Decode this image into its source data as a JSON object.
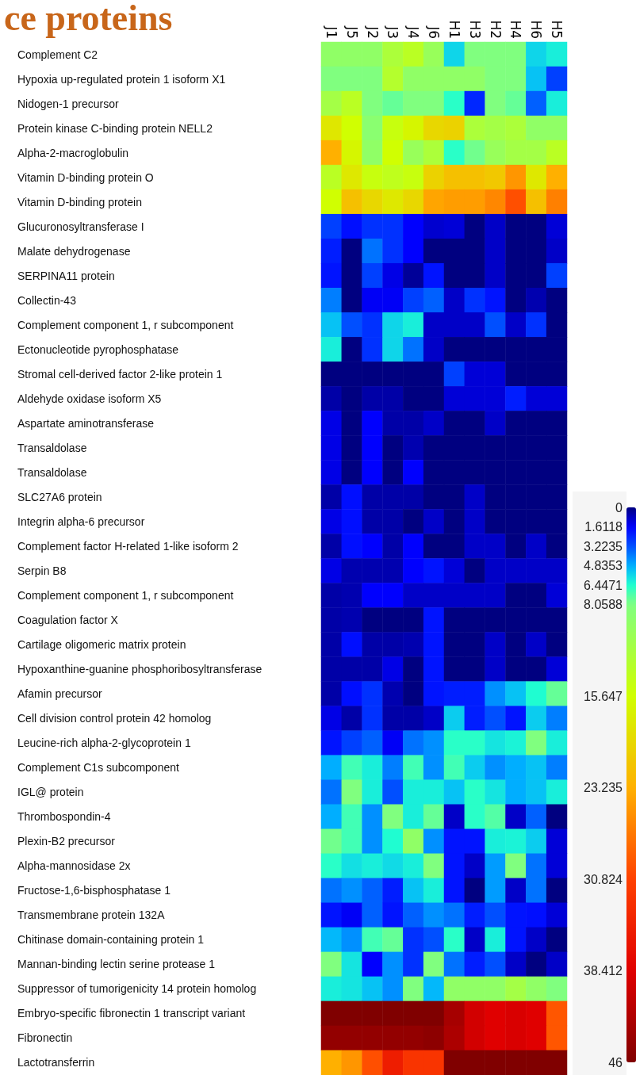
{
  "chart_data": {
    "type": "heatmap",
    "title": "ce proteins",
    "categories": [
      "J1",
      "J5",
      "J2",
      "J3",
      "J4",
      "J6",
      "H1",
      "H3",
      "H2",
      "H4",
      "H6",
      "H5"
    ],
    "y_categories": [
      "Complement C2",
      "Hypoxia up-regulated protein 1 isoform X1",
      "Nidogen-1 precursor",
      "Protein kinase C-binding protein NELL2",
      "Alpha-2-macroglobulin",
      "Vitamin D-binding protein O",
      "Vitamin D-binding protein",
      "Glucuronosyltransferase I",
      "Malate dehydrogenase",
      "SERPINA11 protein",
      "Collectin-43",
      "Complement component 1, r subcomponent",
      "Ectonucleotide pyrophosphatase",
      "Stromal cell-derived factor 2-like protein 1",
      "Aldehyde oxidase isoform X5",
      "Aspartate aminotransferase",
      "Transaldolase",
      "Transaldolase",
      "SLC27A6 protein",
      "Integrin alpha-6 precursor",
      "Complement factor H-related 1-like isoform 2",
      "Serpin B8",
      "Complement component 1, r subcomponent",
      "Coagulation factor X",
      "Cartilage oligomeric matrix protein",
      "Hypoxanthine-guanine phosphoribosyltransferase",
      "Afamin precursor",
      "Cell division control protein 42 homolog",
      "Leucine-rich alpha-2-glycoprotein 1",
      "Complement C1s subcomponent",
      "IGL@ protein",
      "Thrombospondin-4",
      "Plexin-B2 precursor",
      "Alpha-mannosidase 2x",
      "Fructose-1,6-bisphosphatase 1",
      "Transmembrane protein 132A",
      "Chitinase domain-containing protein 1",
      "Mannan-binding lectin serine protease 1",
      "Suppressor of tumorigenicity 14 protein homolog",
      "Embryo-specific fibronectin 1 transcript variant",
      "Fibronectin",
      "Lactotransferrin"
    ],
    "cells": [
      [
        9.6,
        9.6,
        9.6,
        12.2,
        13.6,
        10.3,
        5.6,
        8.1,
        8.1,
        8.1,
        5.6,
        6.1
      ],
      [
        8.1,
        8.1,
        8.1,
        13,
        9.6,
        9.6,
        9.6,
        9.6,
        8.1,
        8.1,
        5.2,
        2.9
      ],
      [
        11.5,
        13.6,
        8.1,
        7.6,
        8.1,
        8.1,
        6.6,
        2.4,
        8.1,
        7.6,
        3.5,
        6.1
      ],
      [
        18,
        15.6,
        9,
        14.8,
        16.5,
        19.5,
        20,
        12.2,
        11.5,
        12.2,
        9.6,
        9.6
      ],
      [
        23.2,
        16.5,
        9.6,
        15.6,
        10.3,
        12.2,
        6.6,
        7.8,
        10.3,
        11.5,
        11.5,
        13.6
      ],
      [
        13.6,
        17.9,
        14.8,
        14,
        14.8,
        20,
        21.7,
        21.7,
        20.9,
        25,
        17.9,
        23.2
      ],
      [
        15.6,
        21.7,
        19.5,
        17.9,
        19.5,
        24,
        24.5,
        24.5,
        26,
        29.8,
        21.7,
        26.5
      ],
      [
        2.9,
        1.9,
        2.6,
        2.6,
        1.6,
        1,
        1.1,
        0,
        0.9,
        0,
        0,
        1.1
      ],
      [
        2.2,
        0,
        3.8,
        2.6,
        1.6,
        0,
        0,
        0,
        0.9,
        0,
        0,
        0.9
      ],
      [
        2,
        0,
        2.9,
        1.3,
        0.3,
        2,
        0,
        0,
        0.9,
        0,
        0,
        2.9
      ],
      [
        4,
        0,
        1.5,
        1.5,
        2.9,
        3.5,
        0.9,
        2.6,
        2,
        0,
        0.6,
        0
      ],
      [
        5.2,
        3.2,
        2.6,
        5.6,
        6.1,
        0.9,
        0.9,
        0.9,
        3.2,
        0.9,
        2.6,
        0
      ],
      [
        6.1,
        0,
        2.6,
        5.6,
        3.8,
        0.9,
        0,
        0,
        0,
        0,
        0,
        0
      ],
      [
        0,
        0,
        0,
        0,
        0,
        0,
        2.9,
        1.1,
        1.1,
        0,
        0,
        0
      ],
      [
        0.5,
        0,
        0.5,
        0.5,
        0,
        0,
        1.1,
        1.1,
        1.1,
        2.2,
        1.1,
        1.1
      ],
      [
        1.3,
        0,
        1.6,
        0.5,
        0.5,
        0.9,
        0,
        0,
        0.9,
        0,
        0,
        0
      ],
      [
        1.3,
        0,
        1.6,
        0,
        0.6,
        0,
        0,
        0,
        0,
        0,
        0,
        0
      ],
      [
        1.3,
        0,
        1.6,
        0,
        1.6,
        0,
        0,
        0,
        0,
        0,
        0,
        0
      ],
      [
        0.5,
        1.9,
        0.5,
        0.5,
        0.5,
        0,
        0,
        0.9,
        0,
        0,
        0,
        0
      ],
      [
        1.3,
        1.9,
        0.5,
        0.5,
        0,
        0.9,
        0,
        0.9,
        0,
        0,
        0,
        0
      ],
      [
        0.5,
        1.9,
        1.6,
        0.5,
        1.6,
        0,
        0,
        0.9,
        0.9,
        0,
        0.9,
        0
      ],
      [
        1.3,
        0.6,
        0.6,
        0.6,
        1.6,
        2,
        1.1,
        0,
        0.9,
        0.9,
        0.9,
        0.9
      ],
      [
        0.5,
        0.6,
        1.6,
        1.6,
        0.9,
        0.9,
        0.9,
        0.9,
        0.9,
        0,
        0,
        1.1
      ],
      [
        0.5,
        0.6,
        0,
        0,
        0,
        2,
        0,
        0,
        0,
        0,
        0,
        0
      ],
      [
        0.5,
        1.9,
        0.5,
        0.5,
        0.6,
        2,
        0,
        0,
        0.9,
        0,
        0.9,
        0
      ],
      [
        0.5,
        0.5,
        0.5,
        1.3,
        0,
        2,
        0,
        0,
        0.9,
        0,
        0,
        1.1
      ],
      [
        0.5,
        1.9,
        2.6,
        0.6,
        0,
        2,
        2.2,
        2.2,
        4.3,
        5.2,
        6.4,
        7.6
      ],
      [
        1.3,
        0.5,
        2.6,
        0.5,
        0.5,
        0.9,
        5.4,
        2.2,
        3.2,
        2,
        5.4,
        4
      ],
      [
        2,
        2.9,
        3.5,
        1.5,
        3.8,
        4.3,
        6.6,
        6.6,
        5.9,
        6.2,
        8.1,
        6.1
      ],
      [
        4.8,
        7,
        6.1,
        4,
        7,
        4.3,
        7,
        5.4,
        4.3,
        4.8,
        5.2,
        4
      ],
      [
        3.8,
        8.1,
        6.1,
        3.2,
        6.1,
        6.1,
        5.2,
        6.6,
        5.9,
        4.8,
        5.2,
        6.1
      ],
      [
        4.8,
        7,
        4.3,
        8.1,
        6.1,
        7.6,
        0.9,
        6.6,
        7.3,
        0.9,
        3.5,
        0
      ],
      [
        7.8,
        7,
        4.3,
        6.4,
        9.6,
        4.3,
        2,
        2,
        6.1,
        6.2,
        5.4,
        1.1
      ],
      [
        6.6,
        5.8,
        6.1,
        5.7,
        6.1,
        8.1,
        2,
        0.9,
        4.5,
        8.1,
        3.8,
        1.1
      ],
      [
        3.8,
        4.3,
        3.5,
        2.2,
        5.2,
        6.1,
        2,
        0,
        4.5,
        0.9,
        3.8,
        0
      ],
      [
        2,
        1.5,
        3.5,
        2,
        3.5,
        4.3,
        3.8,
        2.2,
        3.2,
        2,
        1.9,
        1.1
      ],
      [
        5,
        4.3,
        7,
        7.6,
        2.6,
        3.2,
        6.6,
        0.9,
        6.1,
        2,
        0.9,
        0
      ],
      [
        8.1,
        5.9,
        1.6,
        4.3,
        2.6,
        8.1,
        3.8,
        2.2,
        3.2,
        0.9,
        0,
        0.9
      ],
      [
        6.1,
        5.9,
        5.2,
        4.3,
        8.1,
        5,
        9.6,
        9.6,
        9.6,
        11.5,
        9.6,
        8.1
      ],
      [
        46,
        46,
        46,
        46,
        46,
        46,
        43,
        39.5,
        38.4,
        39,
        38.4,
        29.3
      ],
      [
        44.5,
        44.5,
        44.5,
        44.5,
        44.5,
        45,
        42.5,
        39.5,
        38.4,
        39,
        38.4,
        29.3
      ],
      [
        23.2,
        25,
        29.8,
        35,
        32.3,
        32.3,
        46,
        46,
        46,
        46,
        46,
        46
      ]
    ],
    "clim": [
      0,
      46
    ],
    "cticks": [
      0,
      1.6118,
      3.2235,
      4.8353,
      6.4471,
      8.0588,
      15.647,
      23.235,
      30.824,
      38.412,
      46
    ]
  }
}
